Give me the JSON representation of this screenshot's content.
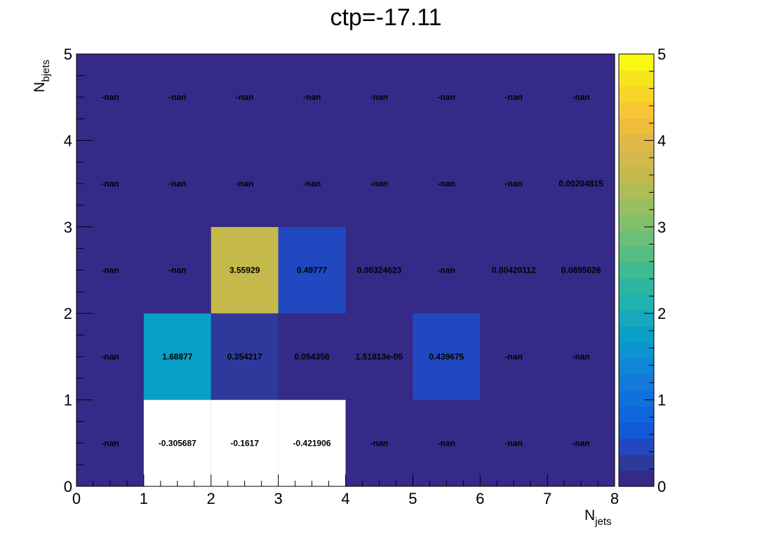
{
  "chart_data": {
    "type": "heatmap",
    "title": "ctp=-17.11",
    "xlabel": {
      "main": "N",
      "sub": "jets"
    },
    "ylabel": {
      "main": "N",
      "sub": "bjets"
    },
    "xlim": [
      0,
      8
    ],
    "ylim": [
      0,
      5
    ],
    "xticks": [
      "0",
      "1",
      "2",
      "3",
      "4",
      "5",
      "6",
      "7",
      "8"
    ],
    "yticks": [
      "0",
      "1",
      "2",
      "3",
      "4",
      "5"
    ],
    "zlim": [
      0,
      5
    ],
    "zticks": [
      "0",
      "1",
      "2",
      "3",
      "4",
      "5"
    ],
    "colormap": "parula",
    "palette": [
      "#352a87",
      "#2d3a9c",
      "#2148c0",
      "#1358d5",
      "#0f66dd",
      "#1171db",
      "#137ad9",
      "#0f87d6",
      "#0b94d0",
      "#09a0c8",
      "#16a9be",
      "#20b2ae",
      "#2bb79f",
      "#3ebb90",
      "#55bd82",
      "#6cbf76",
      "#83bf6a",
      "#9abe5f",
      "#b0bc55",
      "#c5b94b",
      "#d3b94c",
      "#e0b847",
      "#eebd3c",
      "#f9c633",
      "#f8d528",
      "#f6e51c",
      "#f8f812"
    ],
    "empty_color": "#ffffff",
    "cells": [
      {
        "x": 0.5,
        "y": 0.5,
        "label": "-nan",
        "value": 0
      },
      {
        "x": 1.5,
        "y": 0.5,
        "label": "-0.305687",
        "value": -0.305687
      },
      {
        "x": 2.5,
        "y": 0.5,
        "label": "-0.1617",
        "value": -0.1617
      },
      {
        "x": 3.5,
        "y": 0.5,
        "label": "-0.421906",
        "value": -0.421906
      },
      {
        "x": 4.5,
        "y": 0.5,
        "label": "-nan",
        "value": 0
      },
      {
        "x": 5.5,
        "y": 0.5,
        "label": "-nan",
        "value": 0
      },
      {
        "x": 6.5,
        "y": 0.5,
        "label": "-nan",
        "value": 0
      },
      {
        "x": 7.5,
        "y": 0.5,
        "label": "-nan",
        "value": 0
      },
      {
        "x": 0.5,
        "y": 1.5,
        "label": "-nan",
        "value": 0
      },
      {
        "x": 1.5,
        "y": 1.5,
        "label": "1.68877",
        "value": 1.68877
      },
      {
        "x": 2.5,
        "y": 1.5,
        "label": "0.354217",
        "value": 0.354217
      },
      {
        "x": 3.5,
        "y": 1.5,
        "label": "0.054356",
        "value": 0.054356
      },
      {
        "x": 4.5,
        "y": 1.5,
        "label": "1.51813e-05",
        "value": 1.51813e-05
      },
      {
        "x": 5.5,
        "y": 1.5,
        "label": "0.439675",
        "value": 0.439675
      },
      {
        "x": 6.5,
        "y": 1.5,
        "label": "-nan",
        "value": 0
      },
      {
        "x": 7.5,
        "y": 1.5,
        "label": "-nan",
        "value": 0
      },
      {
        "x": 0.5,
        "y": 2.5,
        "label": "-nan",
        "value": 0
      },
      {
        "x": 1.5,
        "y": 2.5,
        "label": "-nan",
        "value": 0
      },
      {
        "x": 2.5,
        "y": 2.5,
        "label": "3.55929",
        "value": 3.55929
      },
      {
        "x": 3.5,
        "y": 2.5,
        "label": "0.49777",
        "value": 0.49777
      },
      {
        "x": 4.5,
        "y": 2.5,
        "label": "0.00324623",
        "value": 0.00324623
      },
      {
        "x": 5.5,
        "y": 2.5,
        "label": "-nan",
        "value": 0
      },
      {
        "x": 6.5,
        "y": 2.5,
        "label": "0.00420112",
        "value": 0.00420112
      },
      {
        "x": 7.5,
        "y": 2.5,
        "label": "0.0895026",
        "value": 0.0895026
      },
      {
        "x": 0.5,
        "y": 3.5,
        "label": "-nan",
        "value": 0
      },
      {
        "x": 1.5,
        "y": 3.5,
        "label": "-nan",
        "value": 0
      },
      {
        "x": 2.5,
        "y": 3.5,
        "label": "-nan",
        "value": 0
      },
      {
        "x": 3.5,
        "y": 3.5,
        "label": "-nan",
        "value": 0
      },
      {
        "x": 4.5,
        "y": 3.5,
        "label": "-nan",
        "value": 0
      },
      {
        "x": 5.5,
        "y": 3.5,
        "label": "-nan",
        "value": 0
      },
      {
        "x": 6.5,
        "y": 3.5,
        "label": "-nan",
        "value": 0
      },
      {
        "x": 7.5,
        "y": 3.5,
        "label": "0.00204815",
        "value": 0.00204815
      },
      {
        "x": 0.5,
        "y": 4.5,
        "label": "-nan",
        "value": 0
      },
      {
        "x": 1.5,
        "y": 4.5,
        "label": "-nan",
        "value": 0
      },
      {
        "x": 2.5,
        "y": 4.5,
        "label": "-nan",
        "value": 0
      },
      {
        "x": 3.5,
        "y": 4.5,
        "label": "-nan",
        "value": 0
      },
      {
        "x": 4.5,
        "y": 4.5,
        "label": "-nan",
        "value": 0
      },
      {
        "x": 5.5,
        "y": 4.5,
        "label": "-nan",
        "value": 0
      },
      {
        "x": 6.5,
        "y": 4.5,
        "label": "-nan",
        "value": 0
      },
      {
        "x": 7.5,
        "y": 4.5,
        "label": "-nan",
        "value": 0
      }
    ]
  }
}
